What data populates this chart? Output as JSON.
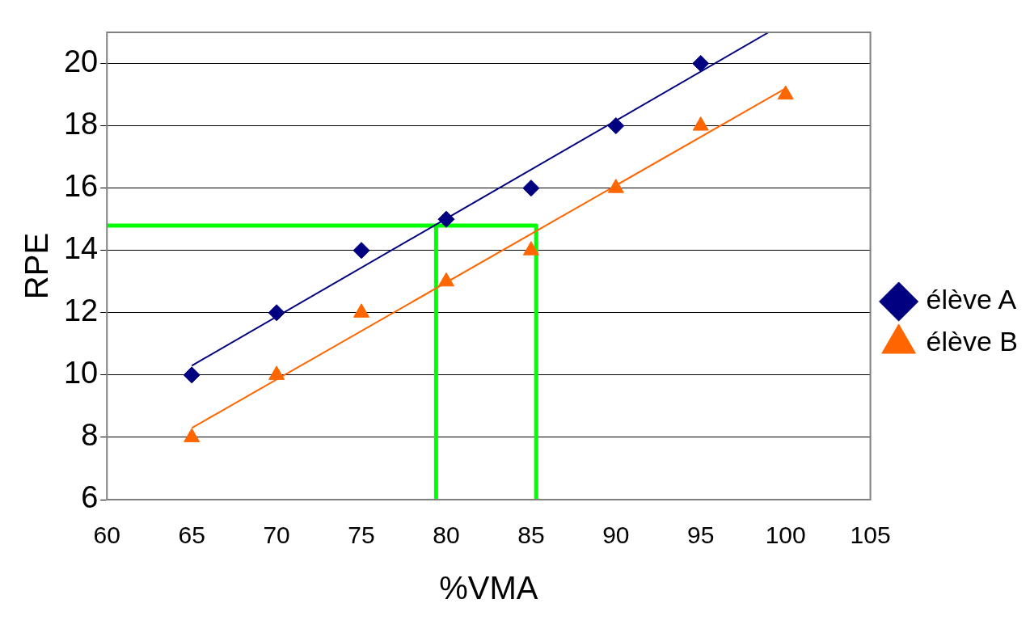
{
  "chart_data": {
    "type": "scatter",
    "xlabel": "%VMA",
    "ylabel": "RPE",
    "xlim": [
      60,
      105
    ],
    "xticks": [
      60,
      65,
      70,
      75,
      80,
      85,
      90,
      95,
      100,
      105
    ],
    "ylim": [
      6,
      21
    ],
    "yticks": [
      6,
      8,
      10,
      12,
      14,
      16,
      18,
      20
    ],
    "grid": "y",
    "legend": "right",
    "series": [
      {
        "name": "élève A",
        "marker": "diamond",
        "color": "#000080",
        "x": [
          65,
          70,
          75,
          80,
          85,
          90,
          95
        ],
        "values": [
          10,
          12,
          14,
          15,
          16,
          18,
          20
        ]
      },
      {
        "name": "élève B",
        "marker": "triangle",
        "color": "#ff6600",
        "x": [
          65,
          70,
          75,
          80,
          85,
          90,
          95,
          100
        ],
        "values": [
          8,
          10,
          12,
          13,
          14,
          16,
          18,
          19
        ]
      },
      {
        "type": "line",
        "marker": "none",
        "color": "#000080",
        "x": [
          65,
          99
        ],
        "values": [
          10.3,
          21
        ]
      },
      {
        "type": "line",
        "marker": "none",
        "color": "#ff6600",
        "x": [
          65,
          100
        ],
        "values": [
          8.3,
          19.2
        ]
      },
      {
        "type": "line",
        "marker": "none",
        "color": "#00ff00",
        "x": [
          60,
          85.3,
          85.3
        ],
        "values": [
          14.8,
          14.8,
          6
        ]
      },
      {
        "type": "line",
        "marker": "none",
        "color": "#00ff00",
        "x": [
          79.4,
          79.4
        ],
        "values": [
          14.8,
          6
        ]
      }
    ]
  }
}
